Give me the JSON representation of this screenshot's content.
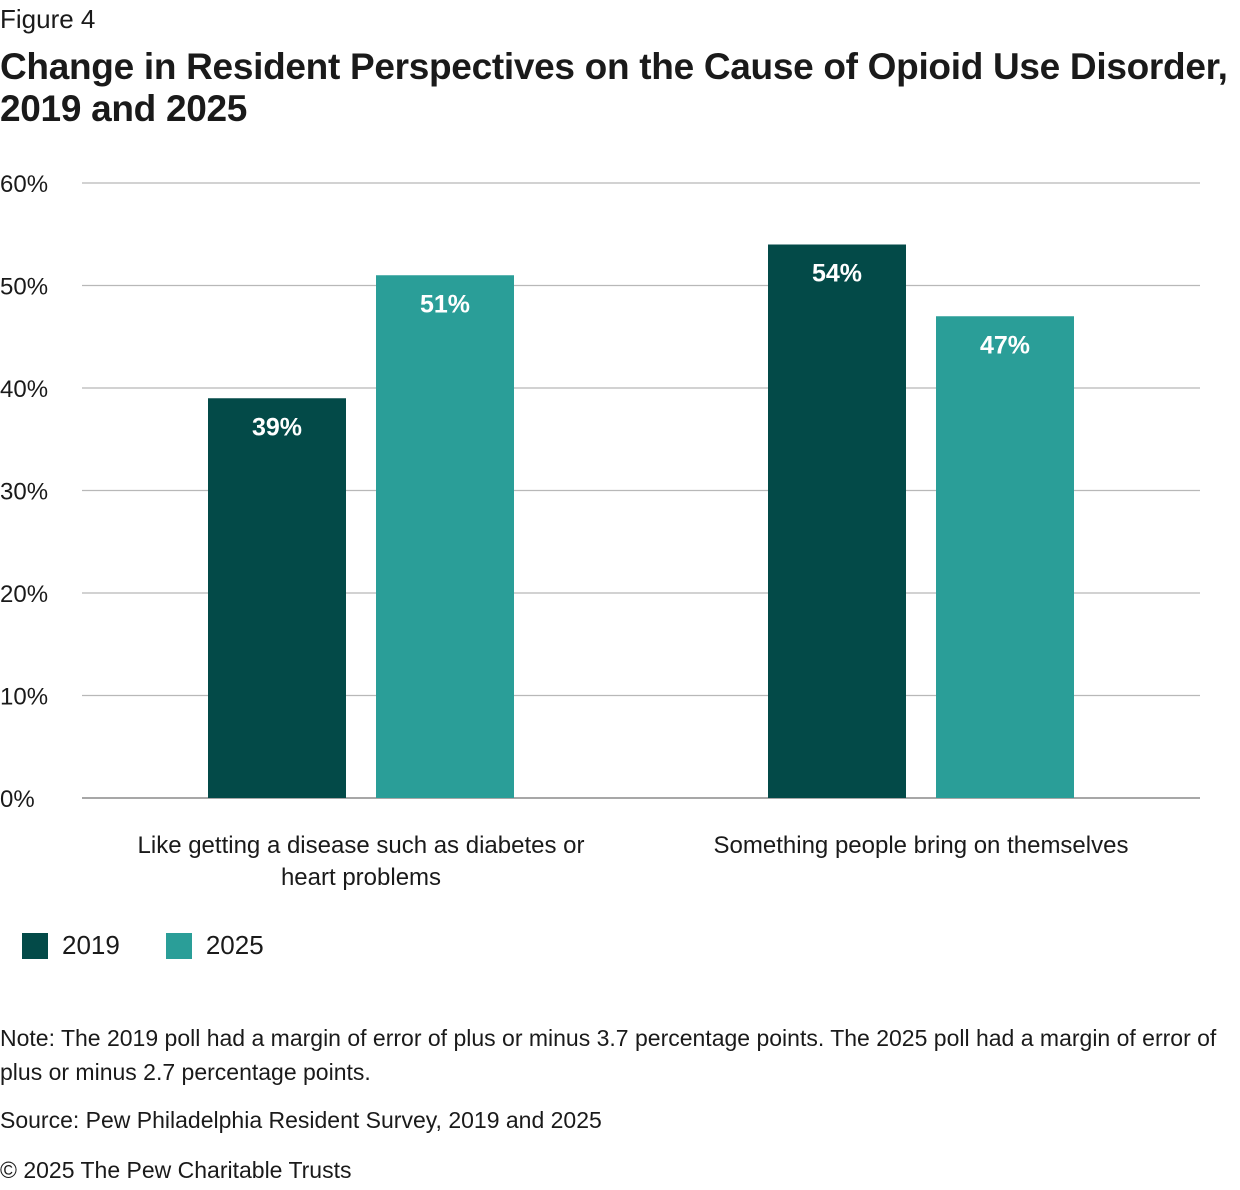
{
  "figure_label": "Figure 4",
  "title": "Change in Resident Perspectives on the Cause of Opioid Use Disorder, 2019 and 2025",
  "chart_data": {
    "type": "bar",
    "categories": [
      [
        "Like getting a disease such as diabetes or",
        "heart problems"
      ],
      [
        "Something people bring on themselves"
      ]
    ],
    "series": [
      {
        "name": "2019",
        "values": [
          39,
          54
        ],
        "color": "#034a48",
        "labels": [
          "39%",
          "54%"
        ]
      },
      {
        "name": "2025",
        "values": [
          51,
          47
        ],
        "color": "#2a9e98",
        "labels": [
          "51%",
          "47%"
        ]
      }
    ],
    "ylim": [
      0,
      60
    ],
    "yticks": [
      "0%",
      "10%",
      "20%",
      "30%",
      "40%",
      "50%",
      "60%"
    ],
    "xlabel": "",
    "ylabel": "",
    "grid": true,
    "legend": "bottom-left"
  },
  "note": "Note: The 2019 poll had a margin of error of plus or minus 3.7 percentage points. The 2025 poll had a margin of error of plus or minus 2.7 percentage points.",
  "source": "Source: Pew Philadelphia Resident Survey, 2019 and 2025",
  "copyright": "© 2025 The Pew Charitable Trusts"
}
